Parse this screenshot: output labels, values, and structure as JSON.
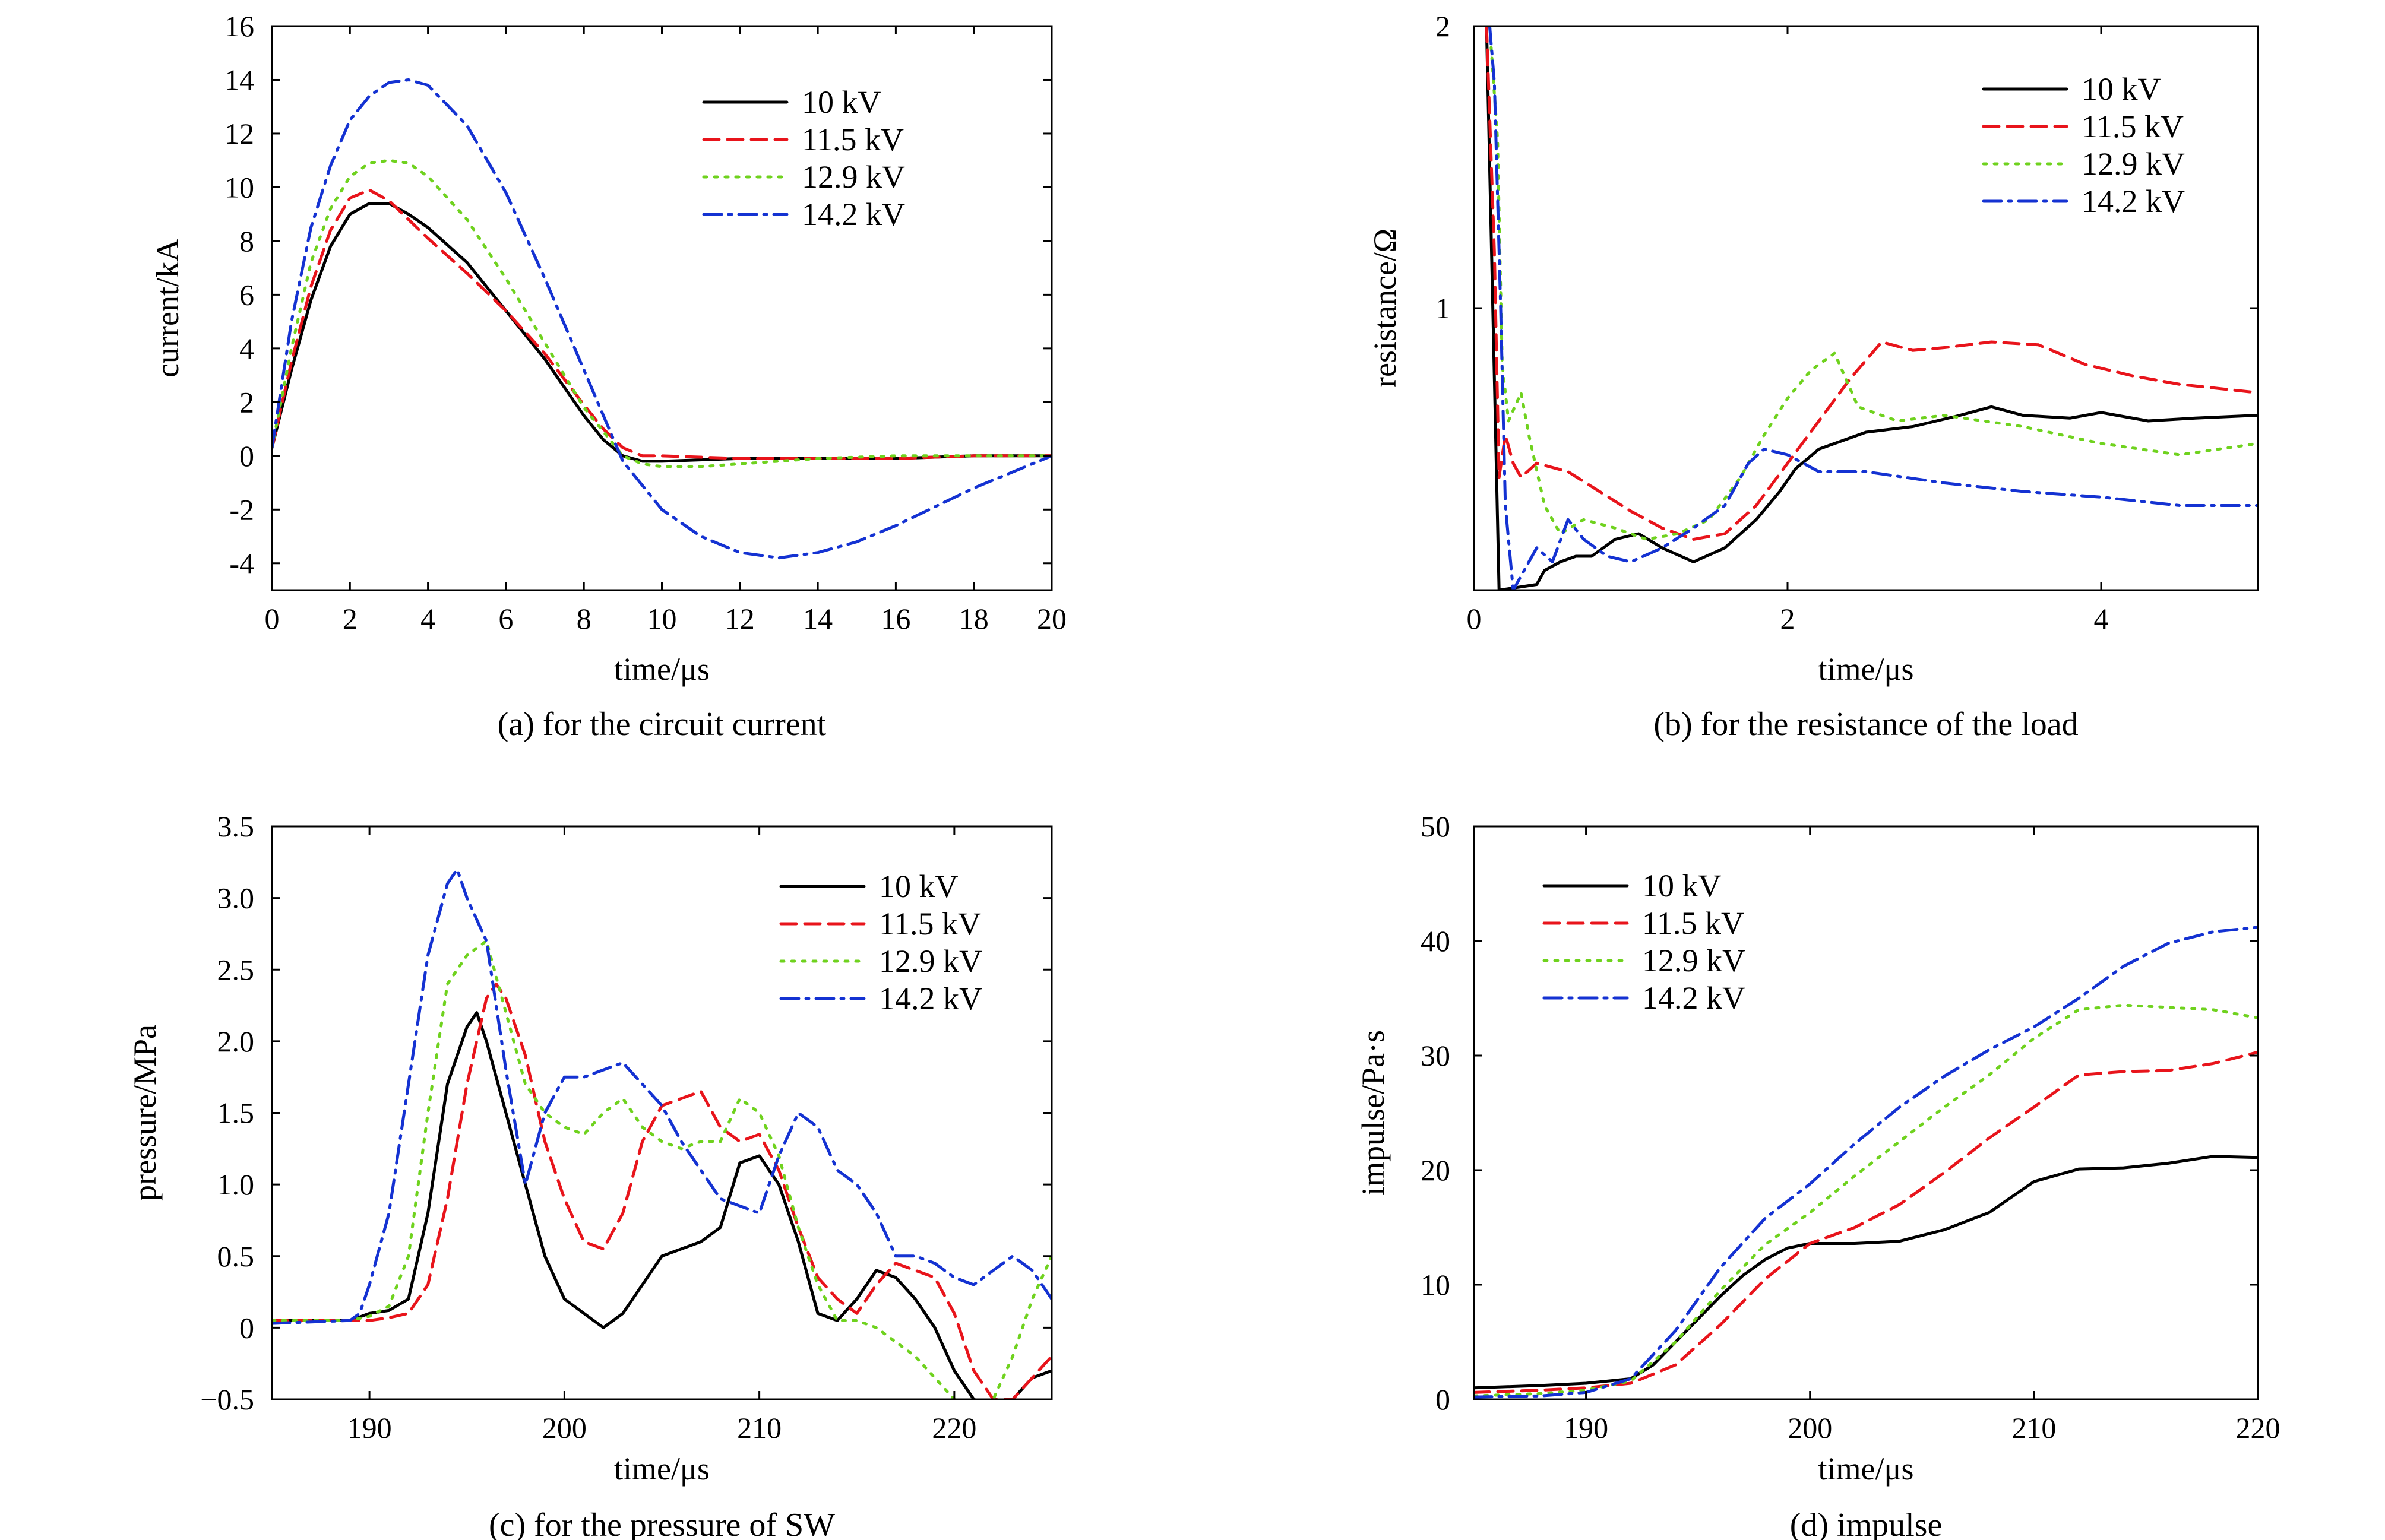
{
  "chart_data": [
    {
      "type": "line",
      "caption": "(a) for the circuit current",
      "xlabel": "time/μs",
      "ylabel": "current/kA",
      "xlim": [
        0,
        20
      ],
      "ylim": [
        -5,
        16
      ],
      "xticks": [
        0,
        2,
        4,
        6,
        8,
        10,
        12,
        14,
        16,
        18,
        20
      ],
      "yticks": [
        -4,
        -2,
        0,
        2,
        4,
        6,
        8,
        10,
        12,
        14,
        16
      ],
      "legend_position": "top-right",
      "series": [
        {
          "name": "10 kV",
          "color": "#000000",
          "dash": "solid",
          "x": [
            0,
            0.5,
            1,
            1.5,
            2,
            2.5,
            3,
            3.5,
            4,
            5,
            6,
            7,
            8,
            8.5,
            9,
            9.5,
            10,
            12,
            14,
            16,
            18,
            20
          ],
          "y": [
            0.3,
            3.2,
            5.8,
            7.8,
            9.0,
            9.4,
            9.4,
            9.0,
            8.5,
            7.2,
            5.4,
            3.6,
            1.5,
            0.6,
            0.0,
            -0.2,
            -0.2,
            -0.1,
            -0.1,
            -0.1,
            0,
            0
          ]
        },
        {
          "name": "11.5 kV",
          "color": "#e8141b",
          "dash": "dashed",
          "x": [
            0,
            0.5,
            1,
            1.5,
            2,
            2.5,
            3,
            4,
            5,
            6,
            7,
            8,
            8.5,
            9,
            9.5,
            10,
            12,
            14,
            16,
            18,
            20
          ],
          "y": [
            0.3,
            3.5,
            6.3,
            8.4,
            9.6,
            9.9,
            9.5,
            8.1,
            6.8,
            5.4,
            3.8,
            1.9,
            1.0,
            0.3,
            0.0,
            0.0,
            -0.1,
            -0.1,
            -0.1,
            0,
            0
          ]
        },
        {
          "name": "12.9 kV",
          "color": "#6fd21e",
          "dash": "dotted",
          "x": [
            0,
            0.5,
            1,
            1.5,
            2,
            2.5,
            3,
            3.5,
            4,
            5,
            6,
            7,
            8,
            9,
            9.5,
            10,
            11,
            12,
            14,
            16,
            18,
            20
          ],
          "y": [
            0.3,
            4.0,
            7.2,
            9.2,
            10.4,
            10.9,
            11.0,
            10.9,
            10.4,
            8.8,
            6.6,
            4.2,
            1.8,
            0.0,
            -0.3,
            -0.4,
            -0.4,
            -0.3,
            -0.1,
            0,
            0,
            0
          ]
        },
        {
          "name": "14.2 kV",
          "color": "#1432d2",
          "dash": "dashdot",
          "x": [
            0,
            0.5,
            1,
            1.5,
            2,
            2.5,
            3,
            3.5,
            4,
            5,
            6,
            7,
            8,
            9,
            10,
            11,
            12,
            13,
            14,
            15,
            16,
            17,
            18,
            19,
            20
          ],
          "y": [
            0.3,
            5.0,
            8.5,
            10.8,
            12.5,
            13.4,
            13.9,
            14.0,
            13.8,
            12.3,
            9.8,
            6.6,
            3.2,
            -0.2,
            -2.0,
            -3.0,
            -3.6,
            -3.8,
            -3.6,
            -3.2,
            -2.6,
            -1.9,
            -1.2,
            -0.6,
            0
          ]
        }
      ]
    },
    {
      "type": "line",
      "caption": "(b) for the resistance of the load",
      "xlabel": "time/μs",
      "ylabel": "resistance/Ω",
      "xlim": [
        0,
        5
      ],
      "ylim": [
        0,
        2
      ],
      "xticks": [
        0,
        2,
        4
      ],
      "yticks": [
        1,
        2
      ],
      "legend_position": "top-right",
      "series": [
        {
          "name": "10 kV",
          "color": "#000000",
          "dash": "solid",
          "x": [
            0.08,
            0.12,
            0.16,
            0.4,
            0.45,
            0.55,
            0.65,
            0.75,
            0.9,
            1.05,
            1.2,
            1.4,
            1.6,
            1.8,
            1.95,
            2.05,
            2.2,
            2.5,
            2.8,
            3.1,
            3.3,
            3.5,
            3.8,
            4.0,
            4.3,
            4.6,
            5.0
          ],
          "y": [
            2.0,
            1.0,
            0.0,
            0.02,
            0.07,
            0.1,
            0.12,
            0.12,
            0.18,
            0.2,
            0.15,
            0.1,
            0.15,
            0.25,
            0.35,
            0.43,
            0.5,
            0.56,
            0.58,
            0.62,
            0.65,
            0.62,
            0.61,
            0.63,
            0.6,
            0.61,
            0.62
          ]
        },
        {
          "name": "11.5 kV",
          "color": "#e8141b",
          "dash": "dashed",
          "x": [
            0.08,
            0.13,
            0.16,
            0.2,
            0.25,
            0.3,
            0.4,
            0.6,
            0.8,
            1.0,
            1.2,
            1.4,
            1.6,
            1.8,
            2.0,
            2.2,
            2.4,
            2.6,
            2.8,
            3.0,
            3.3,
            3.6,
            3.9,
            4.2,
            4.5,
            5.0
          ],
          "y": [
            2.0,
            1.2,
            0.4,
            0.55,
            0.45,
            0.4,
            0.45,
            0.42,
            0.35,
            0.28,
            0.22,
            0.18,
            0.2,
            0.3,
            0.45,
            0.6,
            0.75,
            0.88,
            0.85,
            0.86,
            0.88,
            0.87,
            0.8,
            0.76,
            0.73,
            0.7
          ]
        },
        {
          "name": "12.9 kV",
          "color": "#6fd21e",
          "dash": "dotted",
          "x": [
            0.1,
            0.15,
            0.18,
            0.22,
            0.3,
            0.35,
            0.45,
            0.55,
            0.7,
            0.9,
            1.1,
            1.3,
            1.5,
            1.7,
            1.85,
            2.0,
            2.15,
            2.3,
            2.45,
            2.7,
            3.0,
            3.5,
            4.0,
            4.5,
            5.0
          ],
          "y": [
            2.0,
            1.6,
            0.8,
            0.6,
            0.7,
            0.55,
            0.3,
            0.2,
            0.25,
            0.22,
            0.18,
            0.2,
            0.25,
            0.4,
            0.55,
            0.68,
            0.78,
            0.84,
            0.65,
            0.6,
            0.62,
            0.58,
            0.52,
            0.48,
            0.52
          ]
        },
        {
          "name": "14.2 kV",
          "color": "#1432d2",
          "dash": "dashdot",
          "x": [
            0.1,
            0.13,
            0.17,
            0.2,
            0.25,
            0.3,
            0.4,
            0.5,
            0.6,
            0.7,
            0.85,
            1.0,
            1.2,
            1.4,
            1.6,
            1.75,
            1.85,
            2.0,
            2.2,
            2.5,
            3.0,
            3.5,
            4.0,
            4.5,
            5.0
          ],
          "y": [
            2.0,
            1.8,
            1.0,
            0.3,
            0.0,
            0.05,
            0.15,
            0.1,
            0.25,
            0.18,
            0.12,
            0.1,
            0.15,
            0.22,
            0.3,
            0.45,
            0.5,
            0.48,
            0.42,
            0.42,
            0.38,
            0.35,
            0.33,
            0.3,
            0.3
          ]
        }
      ]
    },
    {
      "type": "line",
      "caption": "(c) for the pressure of SW",
      "xlabel": "time/μs",
      "ylabel": "pressure/MPa",
      "xlim": [
        185,
        225
      ],
      "ylim": [
        -0.5,
        3.5
      ],
      "xticks": [
        190,
        200,
        210,
        220
      ],
      "yticks": [
        -0.5,
        0,
        0.5,
        1.0,
        1.5,
        2.0,
        2.5,
        3.0,
        3.5
      ],
      "legend_position": "top-right",
      "series": [
        {
          "name": "10 kV",
          "color": "#000000",
          "dash": "solid",
          "x": [
            185,
            189,
            190,
            191,
            192,
            193,
            194,
            195,
            195.5,
            196,
            197,
            198,
            199,
            200,
            201,
            202,
            203,
            204,
            205,
            206,
            207,
            208,
            209,
            210,
            211,
            212,
            213,
            214,
            215,
            216,
            217,
            218,
            219,
            220,
            221,
            222,
            223,
            224,
            225
          ],
          "y": [
            0.05,
            0.05,
            0.1,
            0.12,
            0.2,
            0.8,
            1.7,
            2.1,
            2.2,
            2.0,
            1.5,
            1.0,
            0.5,
            0.2,
            0.1,
            0.0,
            0.1,
            0.3,
            0.5,
            0.55,
            0.6,
            0.7,
            1.15,
            1.2,
            1.0,
            0.6,
            0.1,
            0.05,
            0.2,
            0.4,
            0.35,
            0.2,
            0.0,
            -0.3,
            -0.5,
            -0.55,
            -0.5,
            -0.35,
            -0.3
          ]
        },
        {
          "name": "11.5 kV",
          "color": "#e8141b",
          "dash": "dashed",
          "x": [
            185,
            190,
            191,
            192,
            193,
            194,
            195,
            196,
            196.5,
            197,
            198,
            199,
            200,
            201,
            202,
            203,
            204,
            205,
            206,
            207,
            208,
            209,
            210,
            211,
            212,
            213,
            214,
            215,
            216,
            217,
            218,
            219,
            220,
            221,
            222,
            223,
            224,
            225
          ],
          "y": [
            0.05,
            0.05,
            0.07,
            0.1,
            0.3,
            0.9,
            1.7,
            2.3,
            2.4,
            2.3,
            1.9,
            1.3,
            0.9,
            0.6,
            0.55,
            0.8,
            1.3,
            1.55,
            1.6,
            1.65,
            1.4,
            1.3,
            1.35,
            1.1,
            0.7,
            0.35,
            0.2,
            0.1,
            0.3,
            0.45,
            0.4,
            0.35,
            0.1,
            -0.3,
            -0.5,
            -0.5,
            -0.35,
            -0.2
          ]
        },
        {
          "name": "12.9 kV",
          "color": "#6fd21e",
          "dash": "dotted",
          "x": [
            185,
            189,
            190,
            191,
            192,
            193,
            194,
            195,
            196,
            197,
            198,
            199,
            200,
            201,
            202,
            203,
            204,
            205,
            206,
            207,
            208,
            209,
            210,
            211,
            212,
            213,
            214,
            215,
            216,
            217,
            218,
            219,
            220,
            221,
            222,
            223,
            224,
            225
          ],
          "y": [
            0.05,
            0.05,
            0.08,
            0.15,
            0.5,
            1.5,
            2.4,
            2.6,
            2.7,
            2.2,
            1.7,
            1.5,
            1.4,
            1.35,
            1.5,
            1.6,
            1.4,
            1.3,
            1.25,
            1.3,
            1.3,
            1.6,
            1.5,
            1.2,
            0.7,
            0.3,
            0.05,
            0.05,
            0.0,
            -0.1,
            -0.2,
            -0.35,
            -0.5,
            -0.6,
            -0.5,
            -0.2,
            0.2,
            0.5
          ]
        },
        {
          "name": "14.2 kV",
          "color": "#1432d2",
          "dash": "dashdot",
          "x": [
            185,
            189,
            189.5,
            190,
            191,
            192,
            193,
            194,
            194.5,
            195,
            196,
            197,
            198,
            199,
            200,
            201,
            202,
            203,
            204,
            205,
            206,
            207,
            208,
            209,
            210,
            211,
            212,
            213,
            214,
            215,
            216,
            217,
            218,
            219,
            220,
            221,
            222,
            223,
            224,
            225
          ],
          "y": [
            0.03,
            0.05,
            0.1,
            0.3,
            0.8,
            1.7,
            2.6,
            3.1,
            3.2,
            3.0,
            2.7,
            1.8,
            1.0,
            1.5,
            1.75,
            1.75,
            1.8,
            1.85,
            1.7,
            1.55,
            1.3,
            1.1,
            0.9,
            0.85,
            0.8,
            1.2,
            1.5,
            1.4,
            1.1,
            1.0,
            0.8,
            0.5,
            0.5,
            0.45,
            0.35,
            0.3,
            0.4,
            0.5,
            0.4,
            0.2
          ]
        }
      ]
    },
    {
      "type": "line",
      "caption": "(d) impulse",
      "xlabel": "time/μs",
      "ylabel": "impulse/Pa·s",
      "xlim": [
        185,
        220
      ],
      "ylim": [
        0,
        50
      ],
      "xticks": [
        190,
        200,
        210,
        220
      ],
      "yticks": [
        0,
        10,
        20,
        30,
        40,
        50
      ],
      "legend_position": "top-left",
      "series": [
        {
          "name": "10 kV",
          "color": "#000000",
          "dash": "solid",
          "x": [
            185,
            188,
            190,
            192,
            193,
            194,
            195,
            196,
            197,
            198,
            199,
            200,
            202,
            204,
            206,
            208,
            210,
            212,
            214,
            216,
            218,
            220
          ],
          "y": [
            1.0,
            1.2,
            1.4,
            1.8,
            3.0,
            5.0,
            7.0,
            9.0,
            10.8,
            12.2,
            13.2,
            13.6,
            13.6,
            13.8,
            14.8,
            16.3,
            19.0,
            20.1,
            20.2,
            20.6,
            21.2,
            21.1
          ]
        },
        {
          "name": "11.5 kV",
          "color": "#e8141b",
          "dash": "dashed",
          "x": [
            185,
            188,
            190,
            192,
            194,
            196,
            198,
            200,
            202,
            204,
            206,
            208,
            210,
            212,
            214,
            216,
            218,
            220
          ],
          "y": [
            0.6,
            0.8,
            1.0,
            1.4,
            3.0,
            6.5,
            10.5,
            13.6,
            15.0,
            17.0,
            19.8,
            22.8,
            25.5,
            28.3,
            28.6,
            28.7,
            29.3,
            30.3
          ]
        },
        {
          "name": "12.9 kV",
          "color": "#6fd21e",
          "dash": "dotted",
          "x": [
            185,
            188,
            190,
            192,
            194,
            196,
            198,
            200,
            202,
            204,
            206,
            208,
            210,
            212,
            214,
            216,
            218,
            220
          ],
          "y": [
            0.3,
            0.5,
            0.8,
            1.6,
            5.0,
            9.5,
            13.5,
            16.3,
            19.5,
            22.5,
            25.5,
            28.3,
            31.5,
            34.0,
            34.4,
            34.2,
            34.0,
            33.3
          ]
        },
        {
          "name": "14.2 kV",
          "color": "#1432d2",
          "dash": "dashdot",
          "x": [
            185,
            188,
            190,
            192,
            194,
            196,
            198,
            200,
            202,
            204,
            206,
            208,
            210,
            212,
            214,
            216,
            218,
            220
          ],
          "y": [
            0.2,
            0.3,
            0.6,
            1.8,
            6.0,
            11.5,
            15.8,
            18.8,
            22.3,
            25.5,
            28.2,
            30.5,
            32.5,
            35.0,
            37.8,
            39.8,
            40.8,
            41.2
          ]
        }
      ]
    }
  ]
}
